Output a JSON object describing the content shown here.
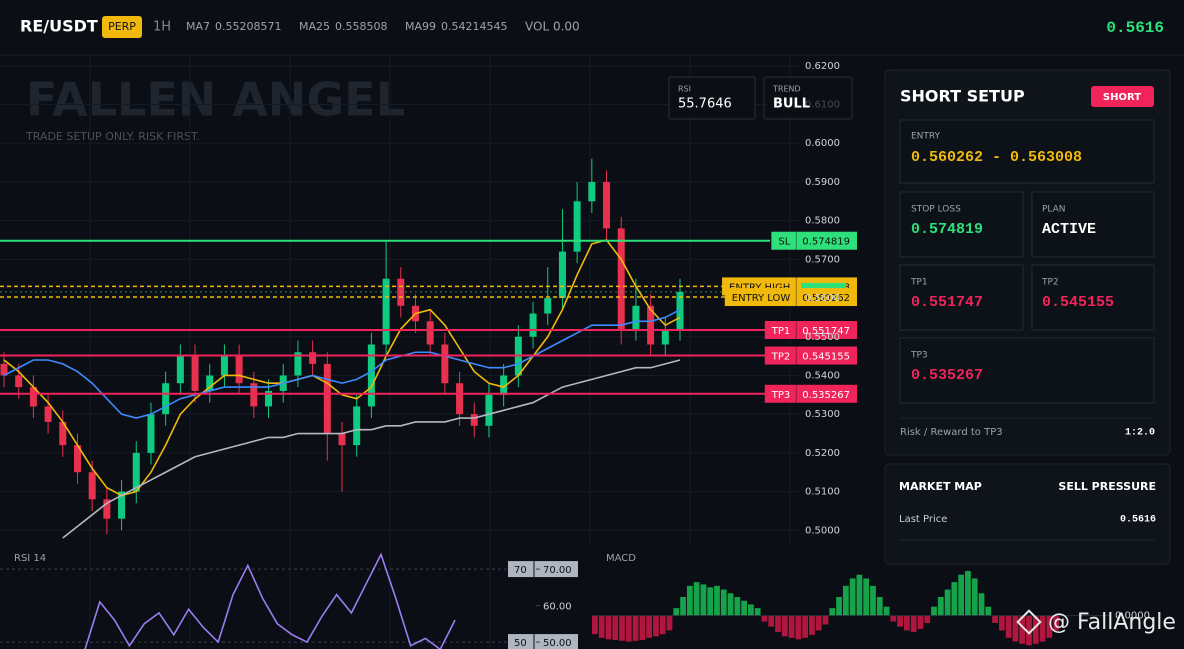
{
  "header": {
    "symbol": "RE/USDT",
    "badge": "PERP",
    "interval": "1H",
    "ma_values": [
      "0.55208571",
      "0.558508",
      "0.54214545"
    ],
    "volume": "VOL 0.00",
    "last_price": "0.5616"
  },
  "overlay": {
    "watermark": "FALLEN ANGEL",
    "subtitle": "TRADE SETUP ONLY. RISK FIRST.",
    "rsi_label": "RSI",
    "rsi_value": "55.7646",
    "trend_label": "TREND",
    "trend_value": "BULL"
  },
  "chart_data": [
    {
      "type": "candlestick",
      "up_color": "#0ecb81",
      "down_color": "#e8304f",
      "open": [
        0.543,
        0.54,
        0.537,
        0.532,
        0.528,
        0.522,
        0.515,
        0.508,
        0.503,
        0.51,
        0.52,
        0.53,
        0.538,
        0.545,
        0.536,
        0.54,
        0.545,
        0.538,
        0.532,
        0.536,
        0.54,
        0.546,
        0.543,
        0.525,
        0.522,
        0.532,
        0.548,
        0.565,
        0.558,
        0.554,
        0.548,
        0.538,
        0.53,
        0.527,
        0.535,
        0.54,
        0.55,
        0.556,
        0.56,
        0.572,
        0.585,
        0.59,
        0.578,
        0.552,
        0.558,
        0.548,
        0.552
      ],
      "high": [
        0.546,
        0.543,
        0.54,
        0.535,
        0.531,
        0.525,
        0.518,
        0.511,
        0.513,
        0.523,
        0.533,
        0.541,
        0.548,
        0.548,
        0.543,
        0.548,
        0.548,
        0.541,
        0.539,
        0.543,
        0.549,
        0.549,
        0.546,
        0.528,
        0.535,
        0.551,
        0.575,
        0.568,
        0.561,
        0.557,
        0.551,
        0.541,
        0.533,
        0.538,
        0.543,
        0.553,
        0.559,
        0.568,
        0.583,
        0.59,
        0.596,
        0.593,
        0.581,
        0.565,
        0.561,
        0.555,
        0.565
      ],
      "low": [
        0.537,
        0.534,
        0.529,
        0.525,
        0.519,
        0.512,
        0.505,
        0.499,
        0.5,
        0.507,
        0.517,
        0.527,
        0.535,
        0.533,
        0.533,
        0.537,
        0.535,
        0.529,
        0.529,
        0.533,
        0.537,
        0.54,
        0.518,
        0.51,
        0.519,
        0.529,
        0.545,
        0.555,
        0.551,
        0.545,
        0.535,
        0.527,
        0.524,
        0.524,
        0.532,
        0.537,
        0.547,
        0.553,
        0.557,
        0.569,
        0.582,
        0.575,
        0.548,
        0.549,
        0.545,
        0.545,
        0.549
      ],
      "close": [
        0.54,
        0.537,
        0.532,
        0.528,
        0.522,
        0.515,
        0.508,
        0.503,
        0.51,
        0.52,
        0.53,
        0.538,
        0.545,
        0.536,
        0.54,
        0.545,
        0.538,
        0.532,
        0.536,
        0.54,
        0.546,
        0.543,
        0.525,
        0.522,
        0.532,
        0.548,
        0.565,
        0.558,
        0.554,
        0.548,
        0.538,
        0.53,
        0.527,
        0.535,
        0.54,
        0.55,
        0.556,
        0.56,
        0.572,
        0.585,
        0.59,
        0.578,
        0.552,
        0.558,
        0.548,
        0.552,
        0.5616
      ],
      "lines": [
        {
          "name": "MA7",
          "color": "#f0b90b",
          "values": [
            0.544,
            0.541,
            0.537,
            0.533,
            0.528,
            0.522,
            0.516,
            0.511,
            0.509,
            0.51,
            0.515,
            0.522,
            0.53,
            0.534,
            0.537,
            0.54,
            0.54,
            0.539,
            0.538,
            0.538,
            0.539,
            0.54,
            0.538,
            0.535,
            0.534,
            0.537,
            0.545,
            0.552,
            0.556,
            0.557,
            0.553,
            0.547,
            0.541,
            0.538,
            0.537,
            0.54,
            0.545,
            0.55,
            0.557,
            0.566,
            0.574,
            0.575,
            0.57,
            0.563,
            0.557,
            0.553,
            0.555
          ]
        },
        {
          "name": "MA25",
          "color": "#3d8bfd",
          "values": [
            0.54,
            0.542,
            0.544,
            0.544,
            0.543,
            0.541,
            0.538,
            0.534,
            0.53,
            0.529,
            0.53,
            0.532,
            0.534,
            0.535,
            0.536,
            0.537,
            0.537,
            0.537,
            0.537,
            0.538,
            0.539,
            0.54,
            0.539,
            0.538,
            0.539,
            0.541,
            0.544,
            0.545,
            0.546,
            0.546,
            0.545,
            0.544,
            0.543,
            0.542,
            0.542,
            0.543,
            0.545,
            0.547,
            0.549,
            0.551,
            0.553,
            0.553,
            0.553,
            0.554,
            0.554,
            0.555,
            0.557
          ]
        },
        {
          "name": "MA99",
          "color": "#b4b8c0",
          "values": [
            null,
            null,
            null,
            null,
            0.498,
            0.501,
            0.504,
            0.507,
            0.509,
            0.511,
            0.513,
            0.515,
            0.517,
            0.519,
            0.52,
            0.521,
            0.522,
            0.523,
            0.524,
            0.524,
            0.525,
            0.525,
            0.525,
            0.525,
            0.526,
            0.526,
            0.527,
            0.527,
            0.528,
            0.528,
            0.528,
            0.529,
            0.529,
            0.53,
            0.531,
            0.532,
            0.533,
            0.535,
            0.537,
            0.538,
            0.539,
            0.54,
            0.541,
            0.542,
            0.542,
            0.543,
            0.544
          ]
        }
      ],
      "levels": [
        {
          "name": "SL",
          "value": 0.574819,
          "color": "#2ee07a",
          "style": "solid"
        },
        {
          "name": "ENTRY HIGH",
          "value": 0.563008,
          "color": "#f0b90b",
          "style": "dashed"
        },
        {
          "value": 0.5616,
          "color": "#2ee07a",
          "style": "none"
        },
        {
          "name": "ENTRY LOW",
          "value": 0.560262,
          "color": "#f0b90b",
          "style": "dashed"
        },
        {
          "name": "TP1",
          "value": 0.551747,
          "color": "#f0245a",
          "style": "solid"
        },
        {
          "name": "TP2",
          "value": 0.545155,
          "color": "#f0245a",
          "style": "solid"
        },
        {
          "name": "TP3",
          "value": 0.535267,
          "color": "#f0245a",
          "style": "solid"
        }
      ],
      "ylim": [
        0.4962,
        0.6228
      ],
      "yticks": [
        {
          "value": 0.62,
          "label": "0.6200"
        },
        {
          "value": 0.61,
          "label": "0.6100"
        },
        {
          "value": 0.6,
          "label": "0.6000"
        },
        {
          "value": 0.59,
          "label": "0.5900"
        },
        {
          "value": 0.58,
          "label": "0.5800"
        },
        {
          "value": 0.57,
          "label": "0.5700"
        },
        {
          "value": 0.56,
          "label": "0.5600"
        },
        {
          "value": 0.55,
          "label": "0.5500"
        },
        {
          "value": 0.54,
          "label": "0.5400"
        },
        {
          "value": 0.53,
          "label": "0.5300"
        },
        {
          "value": 0.52,
          "label": "0.5200"
        },
        {
          "value": 0.51,
          "label": "0.5100"
        },
        {
          "value": 0.5,
          "label": "0.5000"
        }
      ],
      "grid": true
    },
    {
      "type": "line",
      "title": "RSI 14",
      "color": "#9b7df2",
      "values": [
        48,
        61,
        56,
        49,
        55,
        58,
        52,
        59,
        54,
        50,
        63,
        71,
        62,
        55,
        52,
        50,
        57,
        63,
        58,
        66,
        74,
        62,
        49,
        51,
        48,
        56
      ],
      "ylim": [
        48.1,
        76.6
      ],
      "yticks": [
        {
          "value": 70,
          "label": "70.00"
        },
        {
          "value": 60,
          "label": "60.00"
        },
        {
          "value": 50,
          "label": "50.00"
        }
      ],
      "levels": [
        70,
        50
      ]
    },
    {
      "type": "bar",
      "title": "MACD",
      "pos_color": "#16a34a",
      "neg_color": "#b0163e",
      "values": [
        -0.0025,
        -0.003,
        -0.0032,
        -0.0033,
        -0.0034,
        -0.0035,
        -0.0034,
        -0.0033,
        -0.003,
        -0.0028,
        -0.0025,
        -0.002,
        0.001,
        0.0025,
        0.004,
        0.0045,
        0.0042,
        0.0038,
        0.004,
        0.0035,
        0.003,
        0.0025,
        0.002,
        0.0015,
        0.001,
        -0.0008,
        -0.0015,
        -0.0022,
        -0.0028,
        -0.003,
        -0.0032,
        -0.003,
        -0.0026,
        -0.002,
        -0.0012,
        0.001,
        0.0025,
        0.004,
        0.005,
        0.0055,
        0.005,
        0.004,
        0.0025,
        0.0012,
        -0.0008,
        -0.0015,
        -0.002,
        -0.0022,
        -0.0018,
        -0.001,
        0.0012,
        0.0025,
        0.0035,
        0.0045,
        0.0055,
        0.006,
        0.005,
        0.003,
        0.0012,
        -0.001,
        -0.002,
        -0.003,
        -0.0035,
        -0.0038,
        -0.004,
        -0.0038,
        -0.0035,
        -0.003,
        -0.002
      ],
      "ylim": [
        -0.0045,
        0.0095
      ],
      "yticks": [
        {
          "value": 0,
          "label": "0.0000"
        }
      ]
    }
  ],
  "setup": {
    "title": "SHORT SETUP",
    "badge": "SHORT",
    "entry_label": "ENTRY",
    "entry_value": "0.560262 - 0.563008",
    "sl_label": "STOP LOSS",
    "sl_value": "0.574819",
    "plan_label": "PLAN",
    "plan_value": "ACTIVE",
    "tp1_label": "TP1",
    "tp1_value": "0.551747",
    "tp2_label": "TP2",
    "tp2_value": "0.545155",
    "tp3_label": "TP3",
    "tp3_value": "0.535267",
    "rr_label": "Risk / Reward to TP3",
    "rr_value": "1:2.0"
  },
  "market_map": {
    "title": "MARKET MAP",
    "status": "SELL PRESSURE",
    "last_label": "Last Price",
    "last_value": "0.5616"
  },
  "watermark": "@ FallAngle"
}
